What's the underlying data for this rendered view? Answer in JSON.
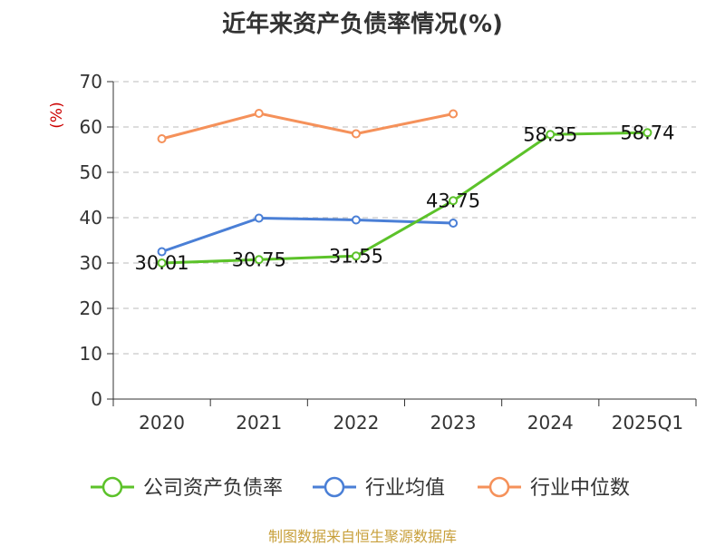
{
  "title": "近年来资产负债率情况(%)",
  "source": "制图数据来自恒生聚源数据库",
  "chart_data": {
    "type": "line",
    "title": "近年来资产负债率情况(%)",
    "ylabel": "(%)",
    "ylim": [
      0,
      70
    ],
    "yticks": [
      0,
      10,
      20,
      30,
      40,
      50,
      60,
      70
    ],
    "grid": true,
    "legend_position": "bottom",
    "categories": [
      "2020",
      "2021",
      "2022",
      "2023",
      "2024",
      "2025Q1"
    ],
    "series": [
      {
        "name": "公司资产负债率",
        "color": "#5cc22a",
        "values": [
          30.01,
          30.75,
          31.55,
          43.75,
          58.35,
          58.74
        ],
        "labels": [
          "30.01",
          "30.75",
          "31.55",
          "43.75",
          "58.35",
          "58.74"
        ]
      },
      {
        "name": "行业均值",
        "color": "#4a7fd6",
        "values": [
          32.5,
          39.9,
          39.5,
          38.8,
          null,
          null
        ]
      },
      {
        "name": "行业中位数",
        "color": "#f5915a",
        "values": [
          57.4,
          63.0,
          58.5,
          62.9,
          null,
          null
        ]
      }
    ]
  }
}
